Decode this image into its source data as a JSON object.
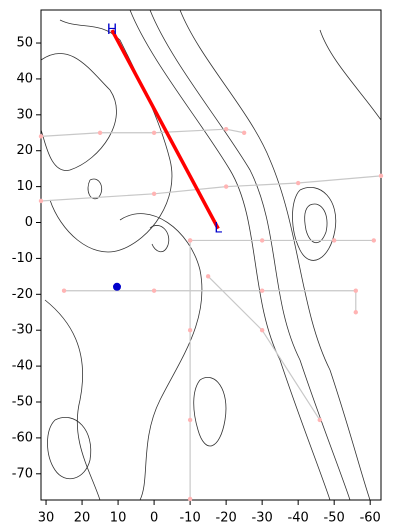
{
  "chart_data": {
    "type": "track-map",
    "xlim": [
      31.4,
      -63
    ],
    "ylim": [
      -77.3,
      59.2
    ],
    "xticks": [
      30,
      20,
      10,
      0,
      -10,
      -20,
      -30,
      -40,
      -50,
      -60
    ],
    "yticks": [
      50,
      40,
      30,
      20,
      10,
      0,
      -10,
      -20,
      -30,
      -40,
      -50,
      -60,
      -70
    ],
    "profile": {
      "color": "#ff0000",
      "x": [
        11.7,
        -17.8
      ],
      "y": [
        53.6,
        -1.7
      ],
      "start_label": "H",
      "end_label": "L",
      "label_color": "#0000cc"
    },
    "station": {
      "color": "#0000cc",
      "x": 10.3,
      "y": -17.9
    },
    "tracks": {
      "color": "#c8c8c8",
      "marker_color": "#ffb4b4",
      "lines": [
        {
          "x": [
            31.4,
            15,
            0,
            -20,
            -25
          ],
          "y": [
            24,
            25,
            25,
            26,
            25
          ]
        },
        {
          "x": [
            31.4,
            0,
            -20,
            -40,
            -63
          ],
          "y": [
            6,
            8,
            10,
            11,
            13
          ]
        },
        {
          "x": [
            -10,
            -30,
            -50,
            -61
          ],
          "y": [
            -5,
            -5,
            -5,
            -5
          ]
        },
        {
          "x": [
            -10,
            -10,
            -10,
            -10
          ],
          "y": [
            -5,
            -30,
            -55,
            -77
          ]
        },
        {
          "x": [
            25,
            0,
            -30,
            -56,
            -56
          ],
          "y": [
            -19,
            -19,
            -19,
            -19,
            -25
          ]
        },
        {
          "x": [
            -15,
            -30,
            -46
          ],
          "y": [
            -15,
            -30,
            -55
          ]
        }
      ]
    }
  }
}
